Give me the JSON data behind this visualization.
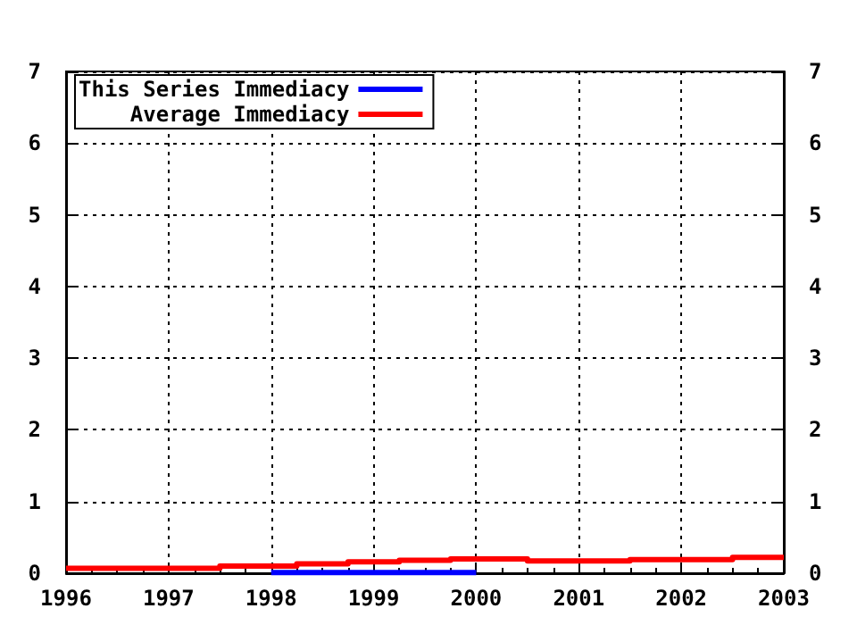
{
  "chart_data": {
    "type": "step",
    "xlim": [
      1996,
      2003
    ],
    "xticks": [
      1996,
      1997,
      1998,
      1999,
      2000,
      2001,
      2002,
      2003
    ],
    "ylim": [
      0,
      7
    ],
    "yticks": [
      0,
      1,
      2,
      3,
      4,
      5,
      6,
      7
    ],
    "y2lim": [
      0,
      7
    ],
    "y2ticks": [
      0,
      1,
      2,
      3,
      4,
      5,
      6,
      7
    ],
    "grid": true,
    "legend": "top left",
    "line_style": "solid",
    "marker": "none",
    "series": [
      {
        "name": "This Series Immediacy",
        "color": "#0000ff",
        "x": [
          1998,
          2000
        ],
        "values": [
          0.01,
          0.01
        ]
      },
      {
        "name": "Average Immediacy",
        "color": "#ff0000",
        "x": [
          1996,
          1997.5,
          1998.25,
          1998.75,
          1999.25,
          1999.75,
          2000.5,
          2001.5,
          2002.5,
          2003
        ],
        "values": [
          0.07,
          0.1,
          0.13,
          0.16,
          0.18,
          0.2,
          0.17,
          0.19,
          0.22,
          0.22
        ]
      }
    ]
  }
}
